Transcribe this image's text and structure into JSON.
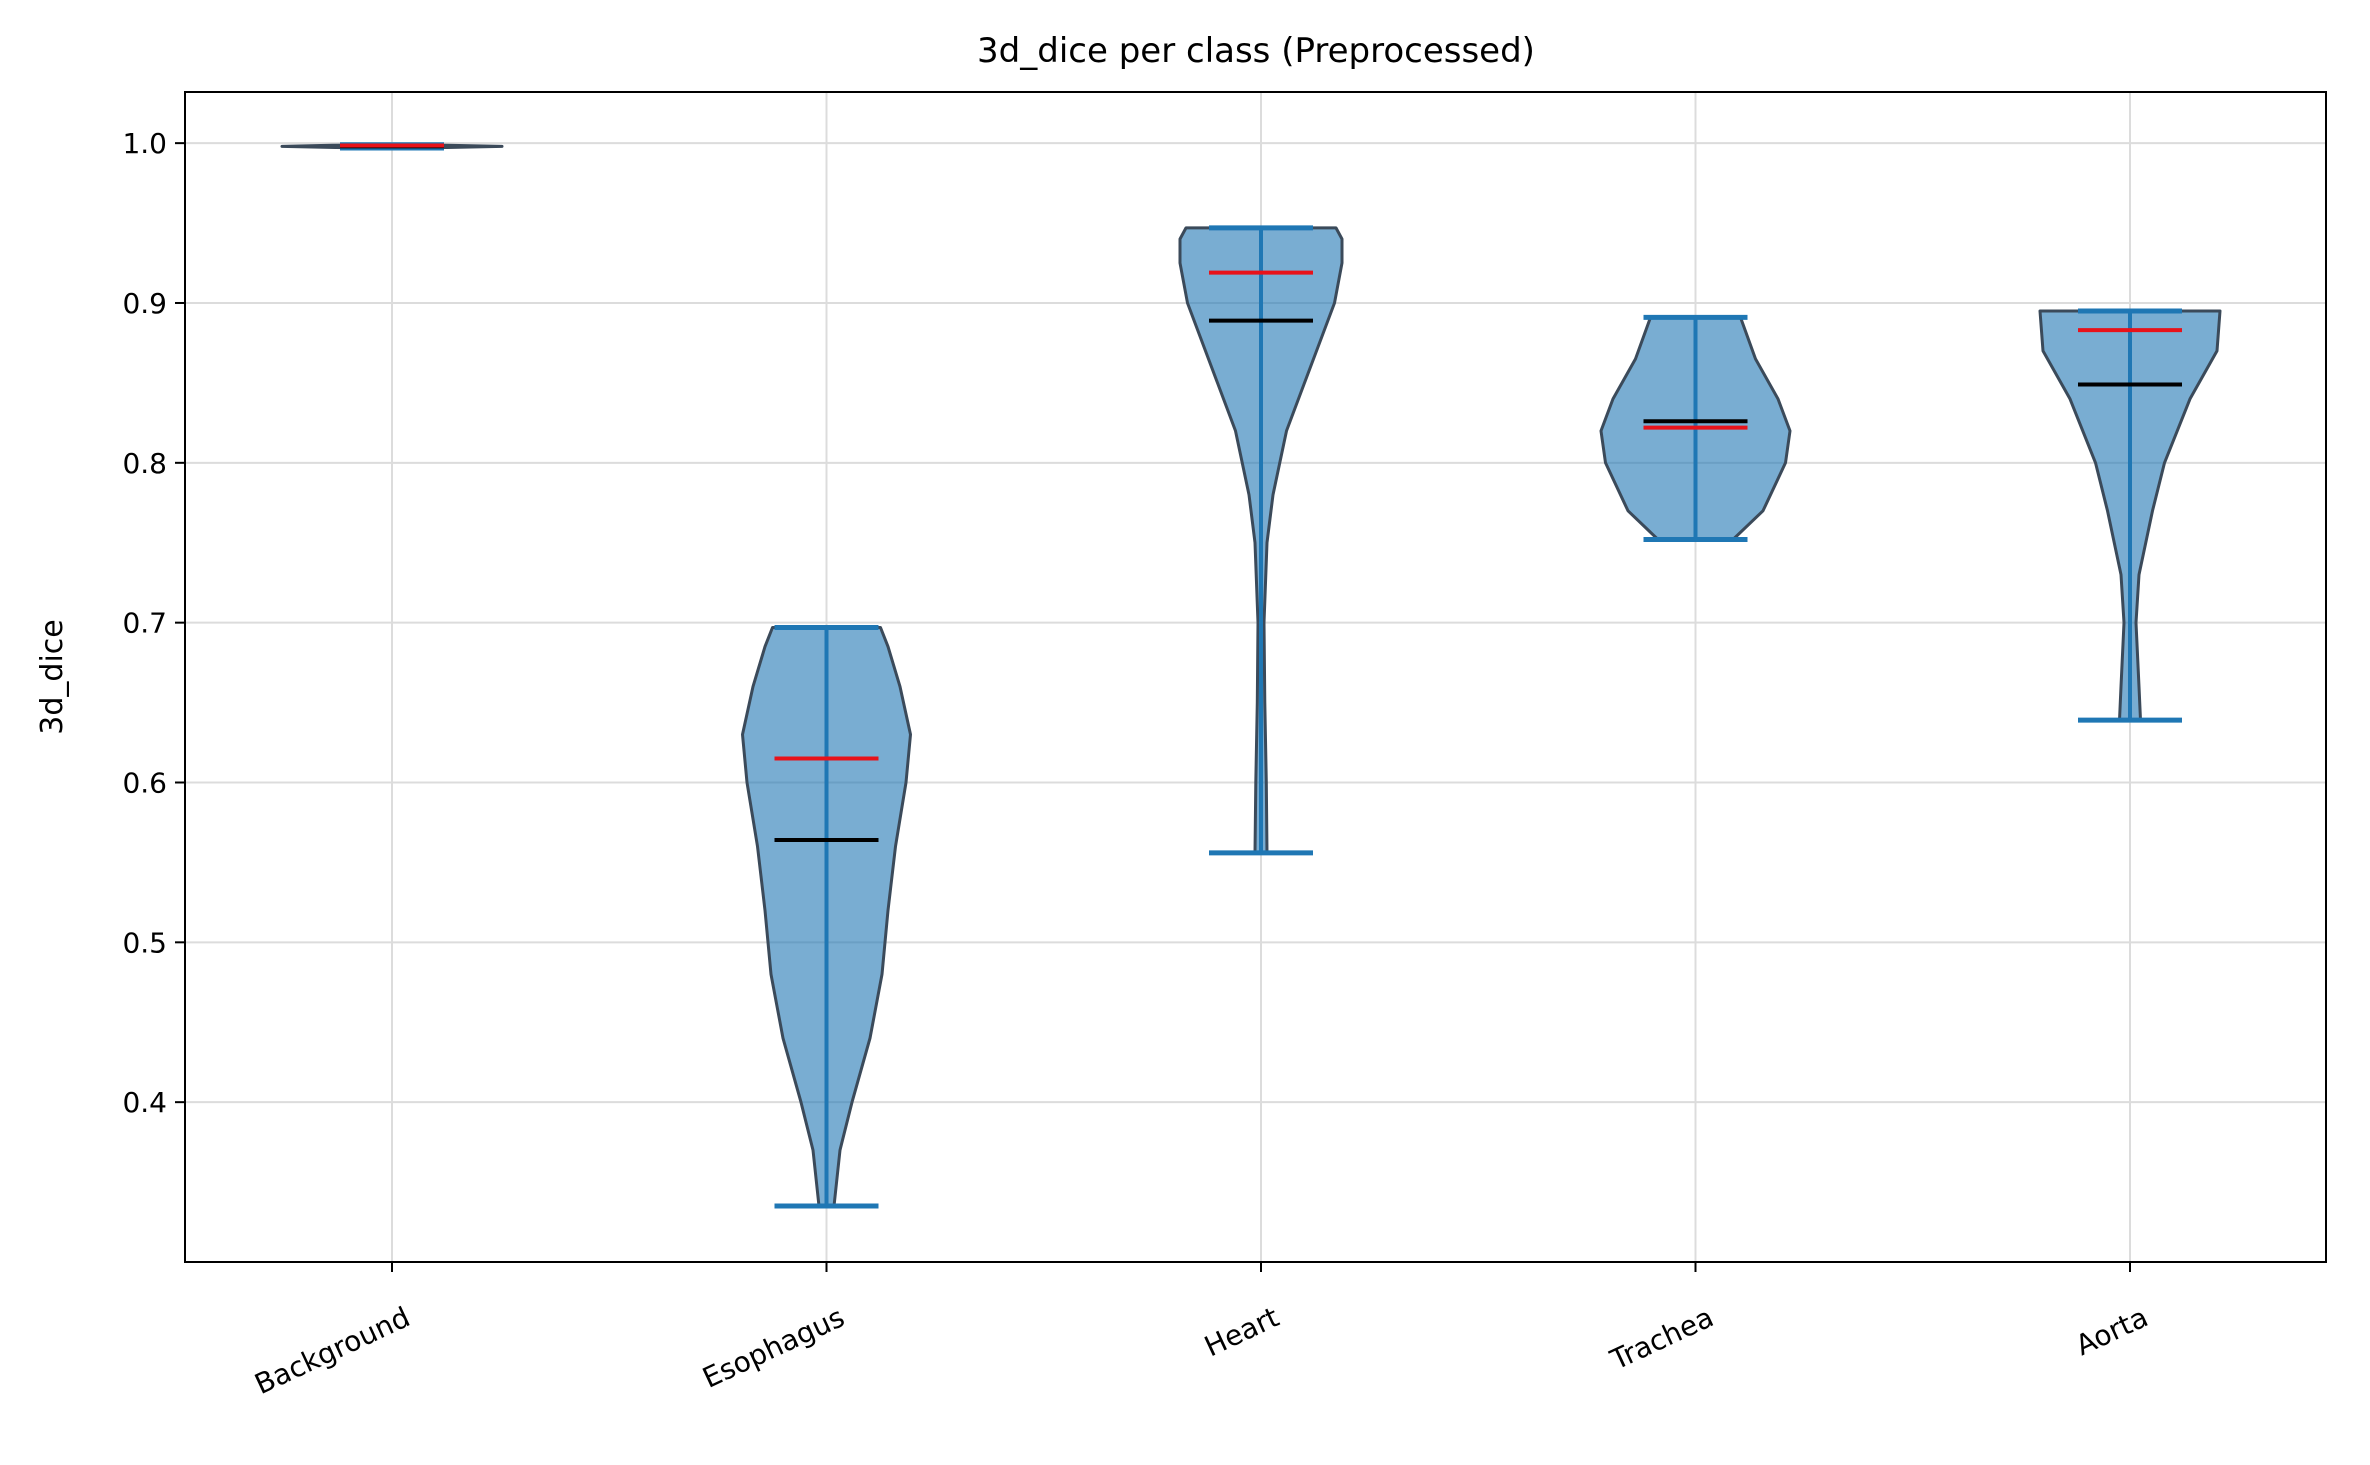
{
  "chart_data": {
    "type": "violin",
    "title": "3d_dice per class (Preprocessed)",
    "ylabel": "3d_dice",
    "xlabel": "",
    "ylim": [
      0.3,
      1.032
    ],
    "yticks": [
      0.4,
      0.5,
      0.6,
      0.7,
      0.8,
      0.9,
      1.0
    ],
    "ytick_labels": [
      "0.4",
      "0.5",
      "0.6",
      "0.7",
      "0.8",
      "0.9",
      "1.0"
    ],
    "grid": true,
    "categories": [
      "Background",
      "Esophagus",
      "Heart",
      "Trachea",
      "Aorta"
    ],
    "colors": {
      "body": "#1f77b4",
      "body_edge": "#3b4a5a",
      "median": "#e8121a",
      "mean": "#000000",
      "grid": "#dcdcdc"
    },
    "violins": [
      {
        "category": "Background",
        "min": 0.997,
        "max": 0.999,
        "median": 0.9985,
        "mean": 0.998,
        "profile": [
          [
            0.997,
            0.6
          ],
          [
            0.998,
            1.0
          ],
          [
            0.999,
            0.6
          ]
        ]
      },
      {
        "category": "Esophagus",
        "min": 0.335,
        "max": 0.697,
        "median": 0.615,
        "mean": 0.564,
        "profile": [
          [
            0.335,
            0.05
          ],
          [
            0.37,
            0.09
          ],
          [
            0.4,
            0.17
          ],
          [
            0.44,
            0.29
          ],
          [
            0.48,
            0.37
          ],
          [
            0.52,
            0.41
          ],
          [
            0.56,
            0.46
          ],
          [
            0.6,
            0.53
          ],
          [
            0.63,
            0.56
          ],
          [
            0.66,
            0.49
          ],
          [
            0.685,
            0.41
          ],
          [
            0.697,
            0.36
          ]
        ]
      },
      {
        "category": "Heart",
        "min": 0.556,
        "max": 0.947,
        "median": 0.919,
        "mean": 0.889,
        "profile": [
          [
            0.556,
            0.04
          ],
          [
            0.6,
            0.035
          ],
          [
            0.65,
            0.025
          ],
          [
            0.7,
            0.02
          ],
          [
            0.75,
            0.04
          ],
          [
            0.78,
            0.08
          ],
          [
            0.82,
            0.17
          ],
          [
            0.85,
            0.29
          ],
          [
            0.88,
            0.41
          ],
          [
            0.9,
            0.49
          ],
          [
            0.925,
            0.54
          ],
          [
            0.94,
            0.54
          ],
          [
            0.947,
            0.5
          ]
        ]
      },
      {
        "category": "Trachea",
        "min": 0.752,
        "max": 0.891,
        "median": 0.822,
        "mean": 0.826,
        "profile": [
          [
            0.752,
            0.25
          ],
          [
            0.77,
            0.45
          ],
          [
            0.8,
            0.6
          ],
          [
            0.82,
            0.63
          ],
          [
            0.84,
            0.55
          ],
          [
            0.865,
            0.4
          ],
          [
            0.891,
            0.3
          ]
        ]
      },
      {
        "category": "Aorta",
        "min": 0.639,
        "max": 0.895,
        "median": 0.883,
        "mean": 0.849,
        "profile": [
          [
            0.639,
            0.07
          ],
          [
            0.66,
            0.06
          ],
          [
            0.7,
            0.04
          ],
          [
            0.73,
            0.06
          ],
          [
            0.77,
            0.15
          ],
          [
            0.8,
            0.23
          ],
          [
            0.84,
            0.4
          ],
          [
            0.87,
            0.58
          ],
          [
            0.895,
            0.6
          ]
        ]
      }
    ]
  }
}
